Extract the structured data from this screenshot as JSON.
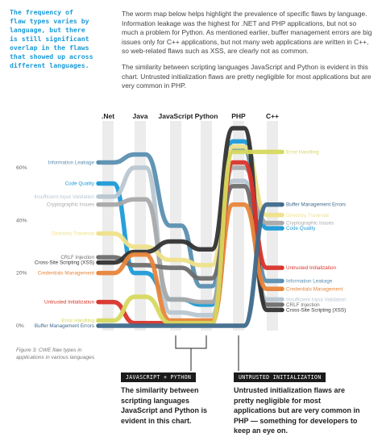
{
  "callout": "The frequency of\nflaw types varies by\nlanguage, but there\nis still significant\noverlap in the flaws\nthat showed up across\ndifferent languages.",
  "intro": {
    "p1": "The worm map below helps highlight the prevalence of specific flaws by language. Information leakage was the highest for .NET and PHP applications, but not so much a problem for Python. As mentioned earlier, buffer management errors are big issues only for C++ applications, but not many web applications are written in C++, so web-related flaws such as XSS, are clearly not as common.",
    "p2": "The similarity between scripting languages JavaScript and Python is evident in this chart. Untrusted initialization flaws are pretty negligible for most applications but are very common in PHP."
  },
  "caption": "Figure 3: CWE flaw types in applications in various languages",
  "notes": [
    {
      "tag": "JAVASCRIPT + PYTHON",
      "text": "The similarity between scripting languages JavaScript and Python is evident in this chart."
    },
    {
      "tag": "UNTRUSTED INITIALIZATION",
      "text": "Untrusted initialization flaws are pretty negligible for most applications but are very common in PHP — something for developers to keep an eye on."
    }
  ],
  "chart_data": {
    "type": "line",
    "x": [
      ".Net",
      "Java",
      "JavaScript",
      "Python",
      "PHP",
      "C++"
    ],
    "yticks": [
      "0%",
      "20%",
      "40%",
      "60%"
    ],
    "ylim": [
      0,
      75
    ],
    "grid": false,
    "series": [
      {
        "name": "Information Leakage",
        "color": "#5b8fb0",
        "values": [
          62,
          65,
          38,
          15,
          67,
          17
        ]
      },
      {
        "name": "Code Quality",
        "color": "#1e9bd7",
        "values": [
          54,
          20,
          10,
          8,
          70,
          37
        ]
      },
      {
        "name": "Insufficient Input Validation",
        "color": "#b9c7d2",
        "values": [
          49,
          60,
          5,
          4,
          55,
          10
        ]
      },
      {
        "name": "Cryptographic Issues",
        "color": "#a9a9a9",
        "values": [
          46,
          48,
          10,
          9,
          60,
          39
        ]
      },
      {
        "name": "Directory Traversal",
        "color": "#efe28a",
        "values": [
          35,
          30,
          25,
          23,
          68,
          42
        ]
      },
      {
        "name": "CRLF Injection",
        "color": "#6e6e6e",
        "values": [
          26,
          23,
          22,
          18,
          53,
          8
        ]
      },
      {
        "name": "Cross-Site Scripting (XSS)",
        "color": "#333333",
        "values": [
          24,
          28,
          32,
          29,
          75,
          6
        ]
      },
      {
        "name": "Credentials Management",
        "color": "#e8853a",
        "values": [
          20,
          27,
          2,
          2,
          46,
          14
        ]
      },
      {
        "name": "Untrusted Initialization",
        "color": "#d9342b",
        "values": [
          9,
          1,
          1,
          1,
          62,
          22
        ]
      },
      {
        "name": "Error Handling",
        "color": "#d6d95e",
        "values": [
          2,
          11,
          1,
          1,
          66,
          66
        ]
      },
      {
        "name": "Buffer Management Errors",
        "color": "#3f6a8c",
        "values": [
          0,
          0,
          0,
          0,
          0,
          46
        ]
      }
    ]
  }
}
